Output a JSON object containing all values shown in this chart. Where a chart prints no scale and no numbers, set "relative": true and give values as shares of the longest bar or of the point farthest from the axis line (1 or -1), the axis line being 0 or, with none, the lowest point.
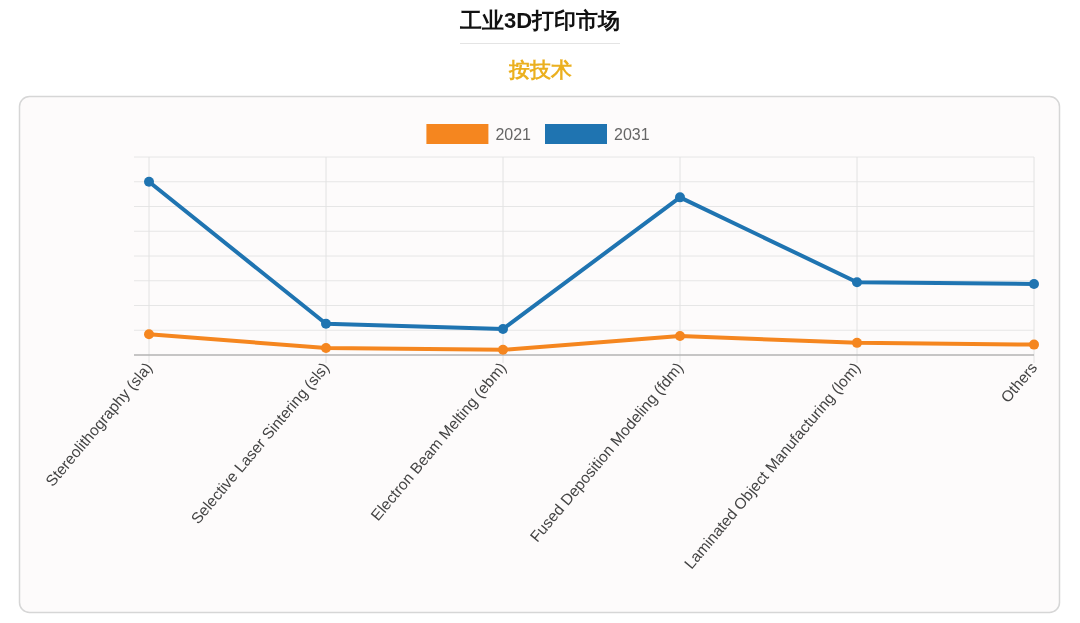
{
  "chart_data": {
    "type": "line",
    "title": "工业3D打印市场",
    "subtitle": "按技术",
    "categories": [
      "Stereolithography (sla)",
      "Selective Laser Sintering (sls)",
      "Electron Beam Melting (ebm)",
      "Fused Deposition Modeling (fdm)",
      "Laminated Object Manufacturing (lom)",
      "Others"
    ],
    "series": [
      {
        "name": "2021",
        "color": "#f5861f",
        "values": [
          0.12,
          0.04,
          0.03,
          0.11,
          0.07,
          0.06
        ]
      },
      {
        "name": "2031",
        "color": "#1f74b1",
        "values": [
          1,
          0.18,
          0.15,
          0.91,
          0.42,
          0.41
        ]
      }
    ],
    "relative": true,
    "grid": true,
    "legend": "top",
    "tick_labels": "x",
    "marker": "circle",
    "line_style": "solid"
  }
}
